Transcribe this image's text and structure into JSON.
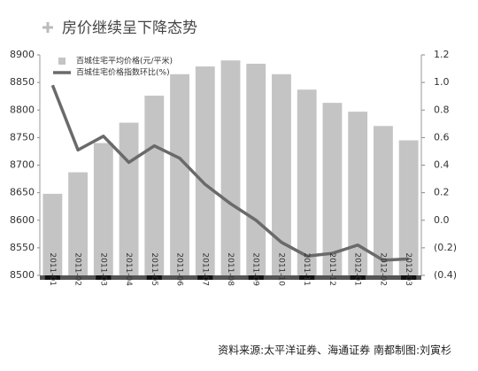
{
  "title": "房价继续呈下降态势",
  "chart_data": {
    "type": "bar-line",
    "categories": [
      "2011-01",
      "2011-02",
      "2011-03",
      "2011-04",
      "2011-05",
      "2011-06",
      "2011-07",
      "2011-08",
      "2011-09",
      "2011-10",
      "2011-11",
      "2011-12",
      "2012-01",
      "2012-02",
      "2012-03"
    ],
    "series": [
      {
        "name": "百城住宅平均价格(元/平米)",
        "type": "bar",
        "color": "#c4c4c4",
        "values": [
          8648,
          8687,
          8740,
          8777,
          8826,
          8865,
          8879,
          8890,
          8884,
          8865,
          8837,
          8813,
          8797,
          8771,
          8745
        ]
      },
      {
        "name": "百城住宅价格指数环比(%)",
        "type": "line",
        "axis": "y2",
        "color": "#6a6a6a",
        "values": [
          0.98,
          0.51,
          0.61,
          0.42,
          0.54,
          0.45,
          0.26,
          0.12,
          0.0,
          -0.16,
          -0.26,
          -0.24,
          -0.18,
          -0.29,
          -0.28
        ]
      }
    ],
    "ylim": [
      8500,
      8900
    ],
    "yticks": [
      8500,
      8550,
      8600,
      8650,
      8700,
      8750,
      8800,
      8850,
      8900
    ],
    "y2lim": [
      -0.4,
      1.2
    ],
    "y2ticks": [
      {
        "value": -0.4,
        "label": "(0.4)"
      },
      {
        "value": -0.2,
        "label": "(0.2)"
      },
      {
        "value": 0,
        "label": "0.0"
      },
      0.2,
      0.4,
      0.6,
      0.8,
      {
        "value": 1,
        "label": "1.0"
      },
      1.2
    ],
    "legend": "upper left"
  },
  "source": "资料来源:太平洋证券、海通证券 南都制图:刘寅杉"
}
